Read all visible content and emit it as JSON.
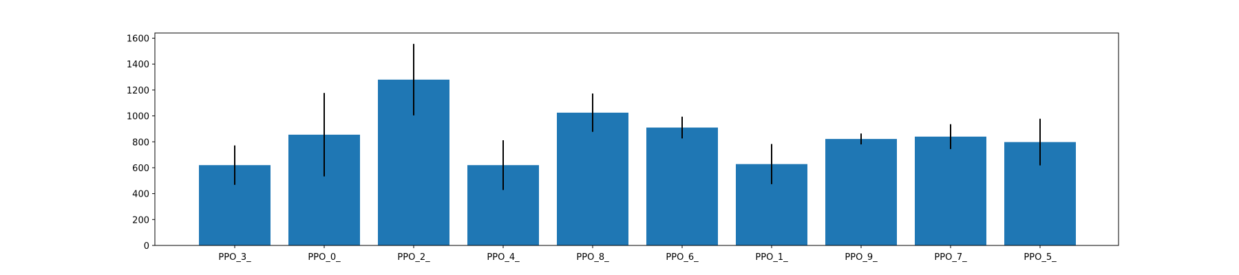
{
  "chart_data": {
    "type": "bar",
    "categories": [
      "PPO_3_",
      "PPO_0_",
      "PPO_2_",
      "PPO_4_",
      "PPO_8_",
      "PPO_6_",
      "PPO_1_",
      "PPO_9_",
      "PPO_7_",
      "PPO_5_"
    ],
    "values": [
      620,
      855,
      1280,
      620,
      1025,
      910,
      628,
      822,
      840,
      798
    ],
    "errors": [
      152,
      322,
      276,
      192,
      148,
      84,
      155,
      42,
      96,
      180
    ],
    "ylim": [
      0,
      1640
    ],
    "yticks": [
      0,
      200,
      400,
      600,
      800,
      1000,
      1200,
      1400,
      1600
    ],
    "title": "",
    "xlabel": "",
    "ylabel": "",
    "grid": false,
    "bar_color": "#1f77b4",
    "error_color": "#000000"
  }
}
